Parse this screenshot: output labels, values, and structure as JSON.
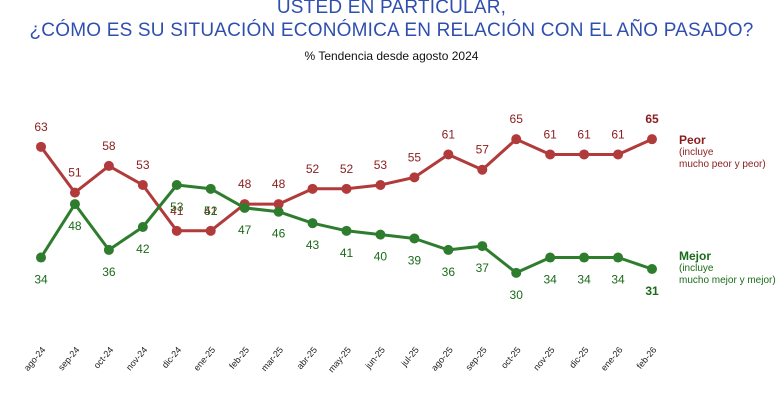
{
  "header": {
    "title_line1": "USTED EN PARTICULAR,",
    "title_line2": "¿CÓMO ES SU SITUACIÓN ECONÓMICA EN RELACIÓN CON EL AÑO PASADO?",
    "subtitle": "%   Tendencia desde agosto 2024"
  },
  "legend": {
    "peor": {
      "name": "Peor",
      "desc_line1": "(incluye",
      "desc_line2": "mucho peor y peor)"
    },
    "mejor": {
      "name": "Mejor",
      "desc_line1": "(incluye",
      "desc_line2": "mucho mejor y mejor)"
    }
  },
  "colors": {
    "peor": "#b13a3a",
    "mejor": "#2e7d2e",
    "peor_label": "#8b1c1c",
    "mejor_label": "#1a6b1a"
  },
  "chart_data": {
    "type": "line",
    "title": "USTED EN PARTICULAR, ¿CÓMO ES SU SITUACIÓN ECONÓMICA EN RELACIÓN CON EL AÑO PASADO?",
    "subtitle": "%   Tendencia desde agosto 2024",
    "categories": [
      "ago-24",
      "sep-24",
      "oct-24",
      "nov-24",
      "dic-24",
      "ene-25",
      "feb-25",
      "mar-25",
      "abr-25",
      "may-25",
      "jun-25",
      "jul-25",
      "ago-25",
      "sep-25",
      "oct-25",
      "nov-25",
      "dic-25",
      "ene-26",
      "feb-26"
    ],
    "series": [
      {
        "name": "Peor",
        "values": [
          63,
          51,
          58,
          53,
          41,
          41,
          48,
          48,
          52,
          52,
          53,
          55,
          61,
          57,
          65,
          61,
          61,
          61,
          65
        ]
      },
      {
        "name": "Mejor",
        "values": [
          34,
          48,
          36,
          42,
          53,
          52,
          47,
          46,
          43,
          41,
          40,
          39,
          36,
          37,
          30,
          34,
          34,
          34,
          31
        ]
      }
    ],
    "ylim": [
      20,
      75
    ],
    "grid": false,
    "legend_position": "right"
  }
}
